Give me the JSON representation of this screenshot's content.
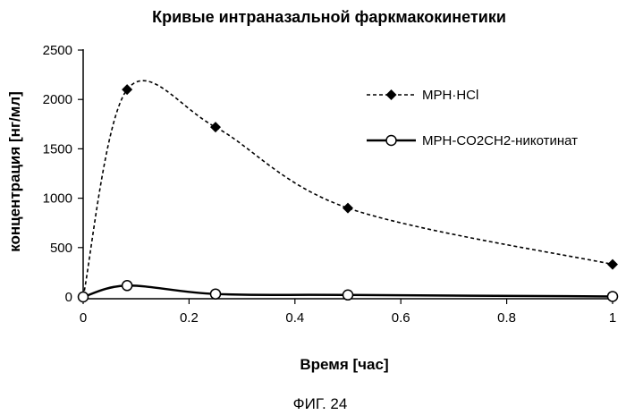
{
  "chart_data": {
    "type": "line",
    "title": "Кривые интраназальной фаркмакокинетики",
    "xlabel": "Время [час]",
    "ylabel": "концентрация [нг/мл]",
    "xlim": [
      0,
      1
    ],
    "ylim": [
      0,
      2500
    ],
    "x_ticks": [
      0,
      0.2,
      0.4,
      0.6,
      0.8,
      1
    ],
    "x_tick_labels": [
      "0",
      "0.2",
      "0.4",
      "0.6",
      "0.8",
      "1"
    ],
    "y_ticks": [
      0,
      500,
      1000,
      1500,
      2000,
      2500
    ],
    "y_tick_labels": [
      "0",
      "500",
      "1000",
      "1500",
      "2000",
      "2500"
    ],
    "grid": false,
    "legend_position": "right",
    "series": [
      {
        "name": "MPH·HCl",
        "marker": "diamond",
        "line_style": "dashed",
        "x": [
          0,
          0.083,
          0.25,
          0.5,
          1
        ],
        "values": [
          0,
          2100,
          1720,
          900,
          330
        ]
      },
      {
        "name": "MPH-CO2CH2-никотинат",
        "marker": "circle",
        "line_style": "solid",
        "x": [
          0,
          0.083,
          0.25,
          0.5,
          1
        ],
        "values": [
          0,
          115,
          30,
          20,
          5
        ]
      }
    ],
    "caption": "ФИГ. 24"
  }
}
